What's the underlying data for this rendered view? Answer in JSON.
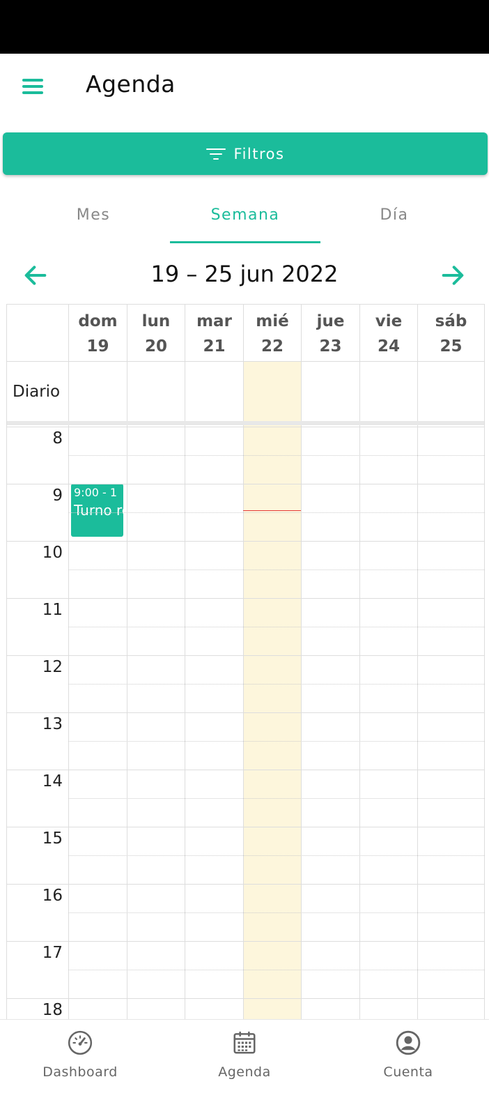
{
  "app_bar": {
    "title": "Agenda"
  },
  "filters": {
    "label": "Filtros"
  },
  "tabs": [
    {
      "label": "Mes",
      "active": false
    },
    {
      "label": "Semana",
      "active": true
    },
    {
      "label": "Día",
      "active": false
    }
  ],
  "week_nav": {
    "range": "19 – 25 jun 2022"
  },
  "calendar": {
    "days": [
      {
        "name": "dom",
        "num": "19"
      },
      {
        "name": "lun",
        "num": "20"
      },
      {
        "name": "mar",
        "num": "21"
      },
      {
        "name": "mié",
        "num": "22"
      },
      {
        "name": "jue",
        "num": "23"
      },
      {
        "name": "vie",
        "num": "24"
      },
      {
        "name": "sáb",
        "num": "25"
      }
    ],
    "today_index": 3,
    "allday_label": "Diario",
    "hours": [
      "8",
      "9",
      "10",
      "11",
      "12",
      "13",
      "14",
      "15",
      "16",
      "17",
      "18"
    ],
    "event": {
      "time": "9:00 - 1",
      "title": "Turno recurr",
      "day_index": 0
    },
    "colors": {
      "accent": "#1bbc9b",
      "today_bg": "#fdf6dc",
      "now_line": "#e53935"
    }
  },
  "bottom_nav": {
    "dashboard": "Dashboard",
    "agenda": "Agenda",
    "cuenta": "Cuenta"
  }
}
